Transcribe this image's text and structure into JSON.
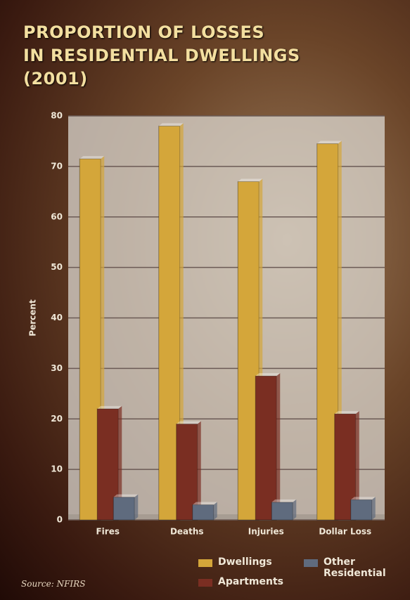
{
  "chart_data": {
    "type": "bar",
    "title": "PROPORTION OF LOSSES\nIN RESIDENTIAL DWELLINGS\n(2001)",
    "y_label": "Percent",
    "categories": [
      "Fires",
      "Deaths",
      "Injuries",
      "Dollar Loss"
    ],
    "series": [
      {
        "name": "Dwellings",
        "color": "#d4a63a",
        "values": [
          71.5,
          78,
          67,
          74.5
        ]
      },
      {
        "name": "Apartments",
        "color": "#7a2e22",
        "values": [
          22,
          19,
          28.5,
          21
        ]
      },
      {
        "name": "Other Residential",
        "color": "#5f6b7e",
        "values": [
          4.5,
          3,
          3.5,
          4
        ]
      }
    ],
    "ylim": [
      0,
      80
    ],
    "yticks": [
      0,
      10,
      20,
      30,
      40,
      50,
      60,
      70,
      80
    ],
    "grid": true,
    "source": "Source: NFIRS"
  }
}
